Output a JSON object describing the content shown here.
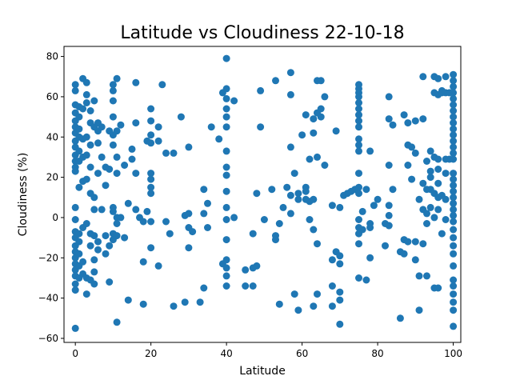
{
  "chart_data": {
    "type": "scatter",
    "title": "Latitude vs Cloudiness 22-10-18",
    "xlabel": "Latitude",
    "ylabel": "Cloudiness (%)",
    "xlim": [
      -3,
      102
    ],
    "ylim": [
      -62,
      85
    ],
    "xticks": [
      0,
      20,
      40,
      60,
      80,
      100
    ],
    "yticks": [
      -60,
      -40,
      -20,
      0,
      20,
      40,
      60,
      80
    ],
    "grid": false,
    "legend": "none",
    "marker_color": "#1f77b4",
    "points": [
      [
        0,
        66
      ],
      [
        0,
        63
      ],
      [
        0,
        56
      ],
      [
        0,
        52
      ],
      [
        0,
        48
      ],
      [
        0,
        45
      ],
      [
        0,
        42
      ],
      [
        0,
        38
      ],
      [
        0,
        35
      ],
      [
        0,
        31
      ],
      [
        0,
        28
      ],
      [
        0,
        25
      ],
      [
        0,
        23
      ],
      [
        0,
        5
      ],
      [
        0,
        -1
      ],
      [
        0,
        -7
      ],
      [
        0,
        -10
      ],
      [
        0,
        -14
      ],
      [
        0,
        -17
      ],
      [
        0,
        -20
      ],
      [
        0,
        -23
      ],
      [
        0,
        -26
      ],
      [
        0,
        -29
      ],
      [
        0,
        -33
      ],
      [
        0,
        -36
      ],
      [
        0,
        -55
      ],
      [
        1,
        55
      ],
      [
        1,
        50
      ],
      [
        1,
        44
      ],
      [
        1,
        40
      ],
      [
        1,
        33
      ],
      [
        1,
        28
      ],
      [
        1,
        15
      ],
      [
        1,
        -8
      ],
      [
        1,
        -12
      ],
      [
        1,
        -18
      ],
      [
        1,
        -24
      ],
      [
        1,
        -30
      ],
      [
        2,
        69
      ],
      [
        2,
        54
      ],
      [
        2,
        39
      ],
      [
        2,
        30
      ],
      [
        2,
        18
      ],
      [
        2,
        -5
      ],
      [
        2,
        -22
      ],
      [
        2,
        -28
      ],
      [
        3,
        67
      ],
      [
        3,
        61
      ],
      [
        3,
        57
      ],
      [
        3,
        40
      ],
      [
        3,
        31
      ],
      [
        3,
        19
      ],
      [
        3,
        -3
      ],
      [
        3,
        -30
      ],
      [
        3,
        -38
      ],
      [
        4,
        53
      ],
      [
        4,
        47
      ],
      [
        4,
        36
      ],
      [
        4,
        25
      ],
      [
        4,
        12
      ],
      [
        4,
        -8
      ],
      [
        4,
        -14
      ],
      [
        4,
        -31
      ],
      [
        5,
        58
      ],
      [
        5,
        45
      ],
      [
        5,
        10
      ],
      [
        5,
        4
      ],
      [
        5,
        -9
      ],
      [
        5,
        -21
      ],
      [
        5,
        -27
      ],
      [
        5,
        -33
      ],
      [
        6,
        47
      ],
      [
        6,
        43
      ],
      [
        6,
        37
      ],
      [
        6,
        22
      ],
      [
        6,
        -12
      ],
      [
        6,
        -16
      ],
      [
        7,
        45
      ],
      [
        7,
        30
      ],
      [
        7,
        4
      ],
      [
        8,
        25
      ],
      [
        8,
        16
      ],
      [
        8,
        -9
      ],
      [
        8,
        -18
      ],
      [
        9,
        43
      ],
      [
        9,
        24
      ],
      [
        9,
        -14
      ],
      [
        9,
        -32
      ],
      [
        10,
        66
      ],
      [
        10,
        63
      ],
      [
        10,
        58
      ],
      [
        10,
        50
      ],
      [
        10,
        41
      ],
      [
        10,
        36
      ],
      [
        10,
        5
      ],
      [
        10,
        3
      ],
      [
        10,
        -8
      ],
      [
        10,
        -11
      ],
      [
        11,
        69
      ],
      [
        11,
        43
      ],
      [
        11,
        30
      ],
      [
        11,
        22
      ],
      [
        11,
        0
      ],
      [
        11,
        -3
      ],
      [
        11,
        -9
      ],
      [
        11,
        -52
      ],
      [
        12,
        46
      ],
      [
        12,
        0
      ],
      [
        13,
        26
      ],
      [
        13,
        -10
      ],
      [
        14,
        7
      ],
      [
        14,
        -41
      ],
      [
        15,
        34
      ],
      [
        15,
        29
      ],
      [
        16,
        67
      ],
      [
        16,
        47
      ],
      [
        16,
        22
      ],
      [
        16,
        4
      ],
      [
        17,
        0
      ],
      [
        18,
        -2
      ],
      [
        18,
        -22
      ],
      [
        18,
        -43
      ],
      [
        19,
        38
      ],
      [
        19,
        3
      ],
      [
        20,
        54
      ],
      [
        20,
        48
      ],
      [
        20,
        41
      ],
      [
        20,
        37
      ],
      [
        20,
        22
      ],
      [
        20,
        19
      ],
      [
        20,
        15
      ],
      [
        20,
        12
      ],
      [
        20,
        -2
      ],
      [
        20,
        -15
      ],
      [
        22,
        45
      ],
      [
        22,
        38
      ],
      [
        22,
        -24
      ],
      [
        23,
        66
      ],
      [
        24,
        32
      ],
      [
        24,
        -2
      ],
      [
        25,
        -8
      ],
      [
        26,
        32
      ],
      [
        26,
        -44
      ],
      [
        28,
        50
      ],
      [
        29,
        1
      ],
      [
        29,
        -42
      ],
      [
        30,
        35
      ],
      [
        30,
        2
      ],
      [
        30,
        -5
      ],
      [
        30,
        -15
      ],
      [
        31,
        -7
      ],
      [
        33,
        -42
      ],
      [
        34,
        14
      ],
      [
        34,
        2
      ],
      [
        34,
        -35
      ],
      [
        35,
        7
      ],
      [
        35,
        -5
      ],
      [
        36,
        45
      ],
      [
        38,
        39
      ],
      [
        39,
        62
      ],
      [
        39,
        -23
      ],
      [
        40,
        79
      ],
      [
        40,
        64
      ],
      [
        40,
        59
      ],
      [
        40,
        54
      ],
      [
        40,
        50
      ],
      [
        40,
        45
      ],
      [
        40,
        33
      ],
      [
        40,
        25
      ],
      [
        40,
        21
      ],
      [
        40,
        13
      ],
      [
        40,
        5
      ],
      [
        40,
        -1
      ],
      [
        40,
        -11
      ],
      [
        40,
        -21
      ],
      [
        40,
        -25
      ],
      [
        40,
        -29
      ],
      [
        40,
        -34
      ],
      [
        42,
        58
      ],
      [
        42,
        0
      ],
      [
        45,
        -34
      ],
      [
        45,
        -26
      ],
      [
        47,
        -34
      ],
      [
        47,
        -25
      ],
      [
        47,
        -8
      ],
      [
        48,
        12
      ],
      [
        48,
        -24
      ],
      [
        49,
        63
      ],
      [
        49,
        45
      ],
      [
        50,
        -1
      ],
      [
        52,
        14
      ],
      [
        53,
        68
      ],
      [
        53,
        -9
      ],
      [
        53,
        -11
      ],
      [
        54,
        -3
      ],
      [
        54,
        -43
      ],
      [
        55,
        5
      ],
      [
        56,
        15
      ],
      [
        57,
        72
      ],
      [
        57,
        61
      ],
      [
        57,
        35
      ],
      [
        57,
        11
      ],
      [
        57,
        2
      ],
      [
        58,
        22
      ],
      [
        58,
        -38
      ],
      [
        59,
        12
      ],
      [
        59,
        9
      ],
      [
        59,
        -46
      ],
      [
        60,
        41
      ],
      [
        61,
        51
      ],
      [
        61,
        15
      ],
      [
        61,
        13
      ],
      [
        61,
        9
      ],
      [
        62,
        29
      ],
      [
        62,
        -1
      ],
      [
        62,
        8
      ],
      [
        63,
        49
      ],
      [
        63,
        42
      ],
      [
        63,
        9
      ],
      [
        63,
        -6
      ],
      [
        63,
        -44
      ],
      [
        64,
        68
      ],
      [
        64,
        52
      ],
      [
        64,
        30
      ],
      [
        64,
        -13
      ],
      [
        64,
        -38
      ],
      [
        65,
        68
      ],
      [
        65,
        54
      ],
      [
        65,
        50
      ],
      [
        66,
        60
      ],
      [
        66,
        26
      ],
      [
        68,
        6
      ],
      [
        68,
        -21
      ],
      [
        68,
        -34
      ],
      [
        68,
        -44
      ],
      [
        69,
        43
      ],
      [
        69,
        -17
      ],
      [
        70,
        5
      ],
      [
        70,
        -19
      ],
      [
        70,
        -23
      ],
      [
        70,
        -37
      ],
      [
        70,
        -41
      ],
      [
        70,
        -53
      ],
      [
        71,
        11
      ],
      [
        72,
        12
      ],
      [
        73,
        13
      ],
      [
        74,
        14
      ],
      [
        75,
        66
      ],
      [
        75,
        64
      ],
      [
        75,
        62
      ],
      [
        75,
        60
      ],
      [
        75,
        57
      ],
      [
        75,
        54
      ],
      [
        75,
        51
      ],
      [
        75,
        48
      ],
      [
        75,
        45
      ],
      [
        75,
        39
      ],
      [
        75,
        36
      ],
      [
        75,
        33
      ],
      [
        75,
        22
      ],
      [
        75,
        15
      ],
      [
        75,
        12
      ],
      [
        75,
        -1
      ],
      [
        75,
        -5
      ],
      [
        75,
        -8
      ],
      [
        75,
        -13
      ],
      [
        75,
        -30
      ],
      [
        76,
        3
      ],
      [
        76,
        -6
      ],
      [
        77,
        14
      ],
      [
        77,
        -31
      ],
      [
        78,
        33
      ],
      [
        78,
        -3
      ],
      [
        78,
        -5
      ],
      [
        78,
        -20
      ],
      [
        79,
        6
      ],
      [
        80,
        9
      ],
      [
        82,
        -3
      ],
      [
        82,
        -14
      ],
      [
        83,
        60
      ],
      [
        83,
        49
      ],
      [
        83,
        26
      ],
      [
        83,
        6
      ],
      [
        83,
        1
      ],
      [
        83,
        -4
      ],
      [
        83,
        -4
      ],
      [
        84,
        46
      ],
      [
        84,
        14
      ],
      [
        86,
        -17
      ],
      [
        86,
        -50
      ],
      [
        87,
        51
      ],
      [
        87,
        -11
      ],
      [
        87,
        -18
      ],
      [
        88,
        47
      ],
      [
        88,
        36
      ],
      [
        88,
        26
      ],
      [
        88,
        -12
      ],
      [
        89,
        35
      ],
      [
        89,
        19
      ],
      [
        90,
        48
      ],
      [
        90,
        32
      ],
      [
        90,
        -12
      ],
      [
        90,
        -21
      ],
      [
        91,
        9
      ],
      [
        91,
        -29
      ],
      [
        91,
        -46
      ],
      [
        92,
        70
      ],
      [
        92,
        49
      ],
      [
        92,
        17
      ],
      [
        92,
        4
      ],
      [
        92,
        -13
      ],
      [
        93,
        28
      ],
      [
        93,
        14
      ],
      [
        93,
        2
      ],
      [
        93,
        -3
      ],
      [
        93,
        -29
      ],
      [
        94,
        33
      ],
      [
        94,
        23
      ],
      [
        94,
        20
      ],
      [
        94,
        14
      ],
      [
        94,
        5
      ],
      [
        95,
        70
      ],
      [
        95,
        62
      ],
      [
        95,
        30
      ],
      [
        95,
        12
      ],
      [
        95,
        0
      ],
      [
        95,
        -35
      ],
      [
        96,
        69
      ],
      [
        96,
        61
      ],
      [
        96,
        29
      ],
      [
        96,
        24
      ],
      [
        96,
        17
      ],
      [
        96,
        10
      ],
      [
        96,
        4
      ],
      [
        96,
        -35
      ],
      [
        97,
        63
      ],
      [
        97,
        62
      ],
      [
        97,
        11
      ],
      [
        97,
        -8
      ],
      [
        98,
        70
      ],
      [
        98,
        62
      ],
      [
        98,
        29
      ],
      [
        98,
        22
      ],
      [
        98,
        9
      ],
      [
        98,
        -1
      ],
      [
        99,
        62
      ],
      [
        99,
        29
      ],
      [
        100,
        71
      ],
      [
        100,
        68
      ],
      [
        100,
        65
      ],
      [
        100,
        62
      ],
      [
        100,
        59
      ],
      [
        100,
        56
      ],
      [
        100,
        53
      ],
      [
        100,
        50
      ],
      [
        100,
        47
      ],
      [
        100,
        44
      ],
      [
        100,
        41
      ],
      [
        100,
        38
      ],
      [
        100,
        35
      ],
      [
        100,
        32
      ],
      [
        100,
        29
      ],
      [
        100,
        22
      ],
      [
        100,
        19
      ],
      [
        100,
        16
      ],
      [
        100,
        13
      ],
      [
        100,
        10
      ],
      [
        100,
        7
      ],
      [
        100,
        4
      ],
      [
        100,
        1
      ],
      [
        100,
        -2
      ],
      [
        100,
        -6
      ],
      [
        100,
        -10
      ],
      [
        100,
        -14
      ],
      [
        100,
        -18
      ],
      [
        100,
        -24
      ],
      [
        100,
        -31
      ],
      [
        100,
        -34
      ],
      [
        100,
        -38
      ],
      [
        100,
        -42
      ],
      [
        100,
        -46
      ],
      [
        100,
        -54
      ]
    ]
  }
}
